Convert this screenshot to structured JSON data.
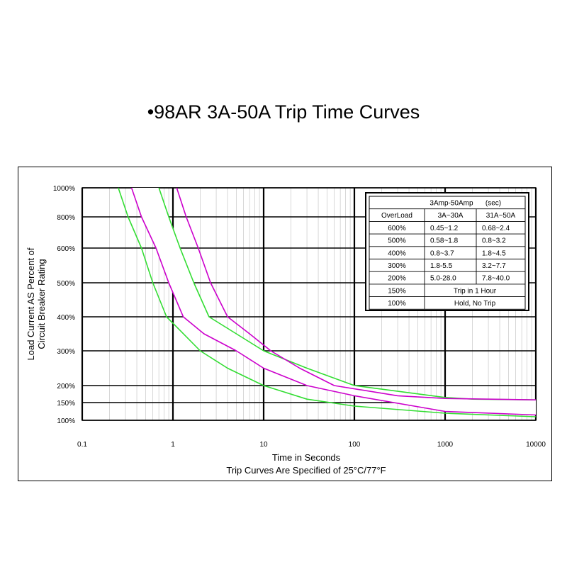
{
  "title": "•98AR 3A-50A Trip Time Curves",
  "chart_data": {
    "type": "line",
    "title": "•98AR 3A-50A Trip Time Curves",
    "xlabel": "Time in Seconds",
    "subtitle": "Trip Curves Are Specified of 25°C/77°F",
    "ylabel_lines": [
      "Load Current AS Percent of",
      "Circuit Breaker Rating"
    ],
    "x_scale": "log",
    "xlim": [
      0.1,
      10000
    ],
    "x_ticks": [
      {
        "value": 0.1,
        "label": "0.1"
      },
      {
        "value": 1,
        "label": "1"
      },
      {
        "value": 10,
        "label": "10"
      },
      {
        "value": 100,
        "label": "100"
      },
      {
        "value": 1000,
        "label": "1000"
      },
      {
        "value": 10000,
        "label": "10000"
      }
    ],
    "y_ticks": [
      {
        "value": 100,
        "label": "100%"
      },
      {
        "value": 150,
        "label": "150%"
      },
      {
        "value": 200,
        "label": "200%"
      },
      {
        "value": 300,
        "label": "300%"
      },
      {
        "value": 400,
        "label": "400%"
      },
      {
        "value": 500,
        "label": "500%"
      },
      {
        "value": 600,
        "label": "600%"
      },
      {
        "value": 800,
        "label": "800%"
      },
      {
        "value": 1000,
        "label": "1000%"
      }
    ],
    "grid": true,
    "colors": {
      "green": "#33dd33",
      "magenta": "#cc00cc",
      "fill": "#ffffff",
      "background": "#ffffff"
    },
    "series": [
      {
        "color": "green",
        "points": [
          [
            0.25,
            1000
          ],
          [
            0.32,
            800
          ],
          [
            0.45,
            600
          ],
          [
            0.6,
            500
          ],
          [
            0.85,
            400
          ],
          [
            1.2,
            360
          ],
          [
            2,
            300
          ],
          [
            4,
            250
          ],
          [
            10,
            200
          ],
          [
            30,
            160
          ],
          [
            100,
            140
          ],
          [
            1000,
            120
          ],
          [
            10000,
            110
          ]
        ]
      },
      {
        "color": "magenta",
        "points": [
          [
            0.35,
            1000
          ],
          [
            0.45,
            800
          ],
          [
            0.65,
            600
          ],
          [
            0.9,
            500
          ],
          [
            1.3,
            400
          ],
          [
            2.2,
            350
          ],
          [
            5,
            300
          ],
          [
            10,
            250
          ],
          [
            30,
            200
          ],
          [
            100,
            170
          ],
          [
            1000,
            125
          ],
          [
            10000,
            115
          ]
        ]
      },
      {
        "color": "green",
        "points": [
          [
            0.7,
            1000
          ],
          [
            0.9,
            800
          ],
          [
            1.2,
            600
          ],
          [
            1.7,
            500
          ],
          [
            2.5,
            400
          ],
          [
            5,
            350
          ],
          [
            10,
            300
          ],
          [
            30,
            250
          ],
          [
            100,
            200
          ],
          [
            1000,
            165
          ],
          [
            2000,
            160
          ],
          [
            10000,
            158
          ]
        ]
      },
      {
        "color": "magenta",
        "points": [
          [
            1.1,
            1000
          ],
          [
            1.4,
            800
          ],
          [
            1.9,
            600
          ],
          [
            2.6,
            500
          ],
          [
            4,
            400
          ],
          [
            7,
            350
          ],
          [
            12,
            300
          ],
          [
            25,
            250
          ],
          [
            60,
            200
          ],
          [
            300,
            170
          ],
          [
            1000,
            162
          ],
          [
            10000,
            158
          ]
        ]
      }
    ],
    "table": {
      "header": "3Amp-50Amp",
      "unit": "(sec)",
      "columns": [
        "OverLoad",
        "3A~30A",
        "31A~50A"
      ],
      "rows": [
        [
          "600%",
          "0.45~1.2",
          "0.68~2.4"
        ],
        [
          "500%",
          "0.58~1.8",
          "0.8~3.2"
        ],
        [
          "400%",
          "0.8~3.7",
          "1.8~4.5"
        ],
        [
          "300%",
          "1.8-5.5",
          "3.2~7.7"
        ],
        [
          "200%",
          "5.0-28.0",
          "7.8~40.0"
        ]
      ],
      "merged_rows": [
        [
          "150%",
          "Trip in 1 Hour"
        ],
        [
          "100%",
          "Hold, No Trip"
        ]
      ]
    }
  }
}
